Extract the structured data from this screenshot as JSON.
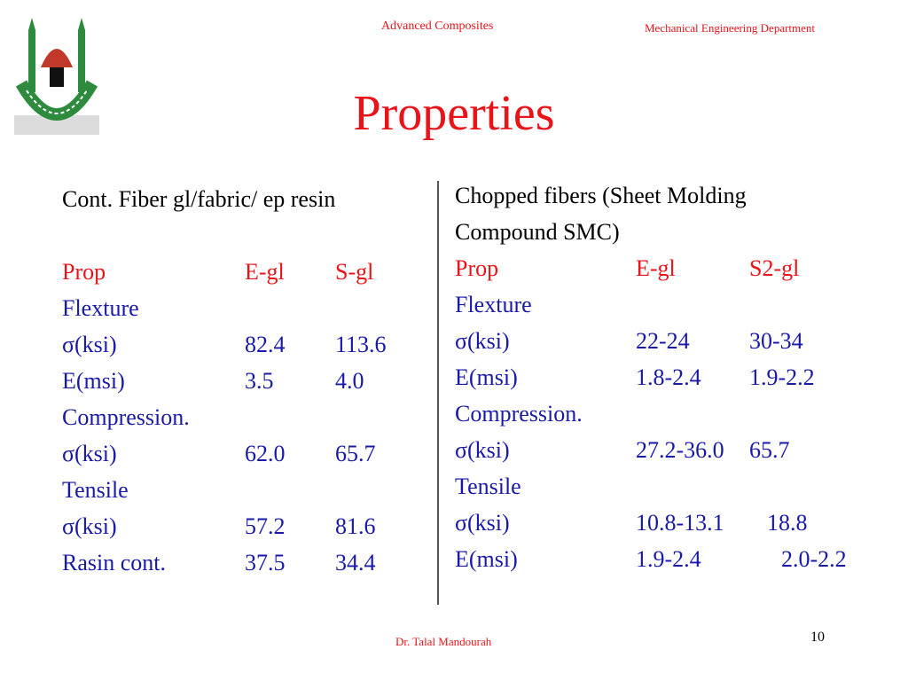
{
  "header": {
    "course": "Advanced Composites",
    "department": "Mechanical Engineering Department"
  },
  "title": "Properties",
  "left": {
    "heading": "Cont. Fiber gl/fabric/ ep resin",
    "columns": [
      "Prop",
      "E-gl",
      "S-gl"
    ],
    "rows": [
      {
        "label": "Flexture",
        "a": "",
        "b": ""
      },
      {
        "label": "σ(ksi)",
        "a": "82.4",
        "b": "113.6"
      },
      {
        "label": "E(msi)",
        "a": "3.5",
        "b": "4.0"
      },
      {
        "label": "Compression.",
        "a": "",
        "b": ""
      },
      {
        "label": "σ(ksi)",
        "a": "62.0",
        "b": "65.7"
      },
      {
        "label": "Tensile",
        "a": "",
        "b": ""
      },
      {
        "label": "σ(ksi)",
        "a": "57.2",
        "b": "81.6"
      },
      {
        "label": "Rasin cont.",
        "a": "37.5",
        "b": "34.4"
      }
    ]
  },
  "right": {
    "heading_line1": "Chopped fibers (Sheet Molding",
    "heading_line2": "Compound SMC)",
    "columns": [
      "Prop",
      "E-gl",
      "S2-gl"
    ],
    "rows": [
      {
        "label": "Flexture",
        "a": "",
        "b": ""
      },
      {
        "label": "σ(ksi)",
        "a": "22-24",
        "b": "30-34"
      },
      {
        "label": "E(msi)",
        "a": "1.8-2.4",
        "b": "1.9-2.2"
      },
      {
        "label": "Compression.",
        "a": "",
        "b": ""
      },
      {
        "label": "σ(ksi)",
        "a": "27.2-36.0",
        "b": "65.7"
      },
      {
        "label": "Tensile",
        "a": "",
        "b": ""
      },
      {
        "label": "σ(ksi)",
        "a": "10.8-13.1",
        "b": "18.8"
      },
      {
        "label": "E(msi)",
        "a": "1.9-2.4",
        "b": "2.0-2.2"
      }
    ]
  },
  "footer": {
    "author": "Dr. Talal Mandourah",
    "page": "10"
  },
  "colors": {
    "accent_red": "#e8141a",
    "label_blue": "#1a1aa8",
    "logo_green": "#2e8b3e"
  }
}
